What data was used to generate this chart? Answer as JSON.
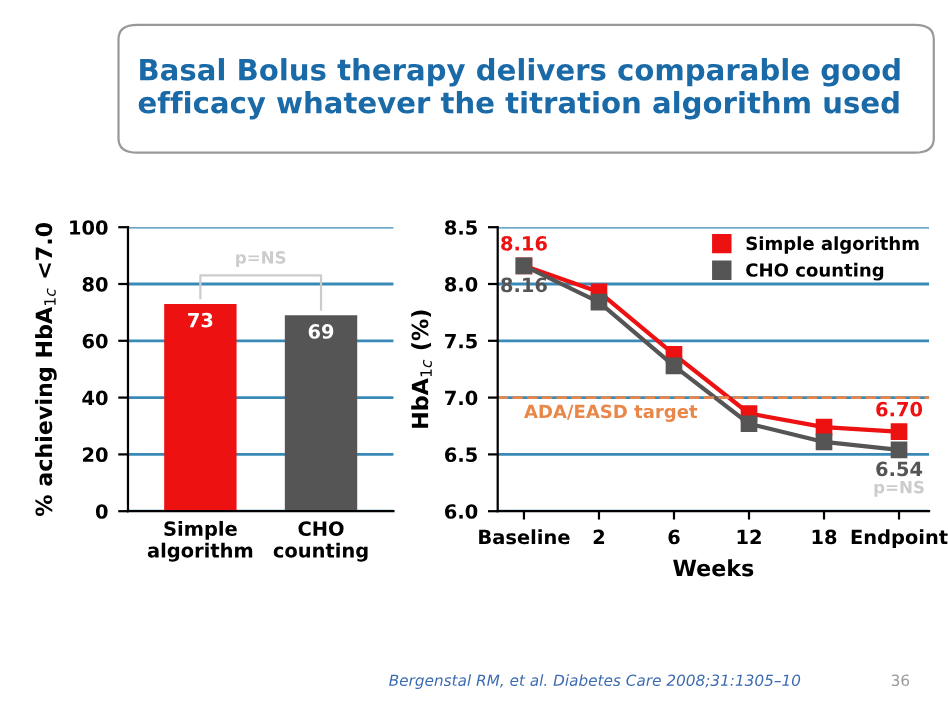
{
  "chart_data": [
    {
      "type": "bar",
      "title": "Basal Bolus therapy delivers comparable good efficacy whatever the titration algorithm used",
      "ylabel": "% achieving HbA$_{1c}$ <7.0",
      "categories": [
        "Simple\nalgorithm",
        "CHO\ncounting"
      ],
      "values": [
        73,
        69
      ],
      "colors": [
        "#ee1111",
        "#555555"
      ],
      "ylim": [
        0,
        100
      ],
      "yticks": [
        0,
        20,
        40,
        60,
        80,
        100
      ],
      "grid": "y",
      "data_labels": true,
      "annotations": [
        "p=NS"
      ]
    },
    {
      "type": "line",
      "xlabel": "Weeks",
      "ylabel": "HbA$_{1c}$ (%)",
      "categories": [
        "Baseline",
        "2",
        "6",
        "12",
        "18",
        "Endpoint"
      ],
      "series": [
        {
          "name": "Simple algorithm",
          "color": "#ee1111",
          "values": [
            8.16,
            7.93,
            7.38,
            6.86,
            6.74,
            6.7
          ],
          "value_labels": [
            "8.16",
            null,
            null,
            null,
            null,
            "6.70"
          ]
        },
        {
          "name": "CHO counting",
          "color": "#555555",
          "values": [
            8.16,
            7.84,
            7.28,
            6.77,
            6.61,
            6.54
          ],
          "value_labels": [
            "8.16",
            null,
            null,
            null,
            null,
            "6.54"
          ]
        }
      ],
      "ylim": [
        6.0,
        8.5
      ],
      "yticks": [
        {
          "value": 6.0,
          "label": "6.0"
        },
        {
          "value": 6.5,
          "label": "6.5"
        },
        {
          "value": 7.0,
          "label": "7.0"
        },
        {
          "value": 7.5,
          "label": "7.5"
        },
        {
          "value": 8.0,
          "label": "8.0"
        },
        {
          "value": 8.5,
          "label": "8.5"
        }
      ],
      "grid": "y",
      "legend": "top right",
      "marker": "square",
      "line_style": "solid",
      "ref_lines": [
        {
          "axis": "y",
          "value": 7.0,
          "label": "ADA/EASD target",
          "color": "#e8874a",
          "line_style": "dashed"
        }
      ],
      "annotations": [
        {
          "text": "p=NS",
          "x": "Endpoint",
          "y": 6.54
        },
        "Bergenstal RM, et al. Diabetes Care 2008;31:1305–10",
        "36"
      ]
    }
  ]
}
